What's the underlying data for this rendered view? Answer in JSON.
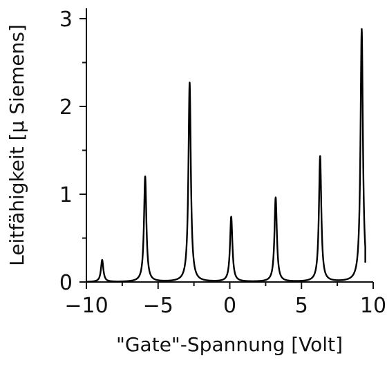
{
  "chart_data": {
    "type": "line",
    "xlabel": "\"Gate\"-Spannung [Volt]",
    "ylabel": "Leitfähigkeit [µ Siemens]",
    "xlim": [
      -10,
      10
    ],
    "ylim": [
      0,
      3.05
    ],
    "grid": false,
    "x_ticks": [
      -10,
      -5,
      0,
      5,
      10
    ],
    "x_tick_labels": [
      "−10",
      "−5",
      "0",
      "5",
      "10"
    ],
    "y_ticks": [
      0,
      1,
      2,
      3
    ],
    "y_tick_labels": [
      "0",
      "1",
      "2",
      "3"
    ],
    "x_minor_ticks": [
      -7.5,
      -2.5,
      2.5,
      7.5
    ],
    "y_minor_ticks": [
      0.5,
      1.5,
      2.5
    ],
    "line_color": "#000000",
    "series": [
      {
        "peaks": [
          {
            "x": -8.9,
            "y": 0.25
          },
          {
            "x": -5.9,
            "y": 1.2
          },
          {
            "x": -2.8,
            "y": 2.27
          },
          {
            "x": 0.1,
            "y": 0.74
          },
          {
            "x": 3.2,
            "y": 0.96
          },
          {
            "x": 6.3,
            "y": 1.43
          },
          {
            "x": 9.2,
            "y": 2.88
          }
        ],
        "x_range": [
          -10,
          9.45
        ],
        "end_value": 0.22
      }
    ]
  }
}
